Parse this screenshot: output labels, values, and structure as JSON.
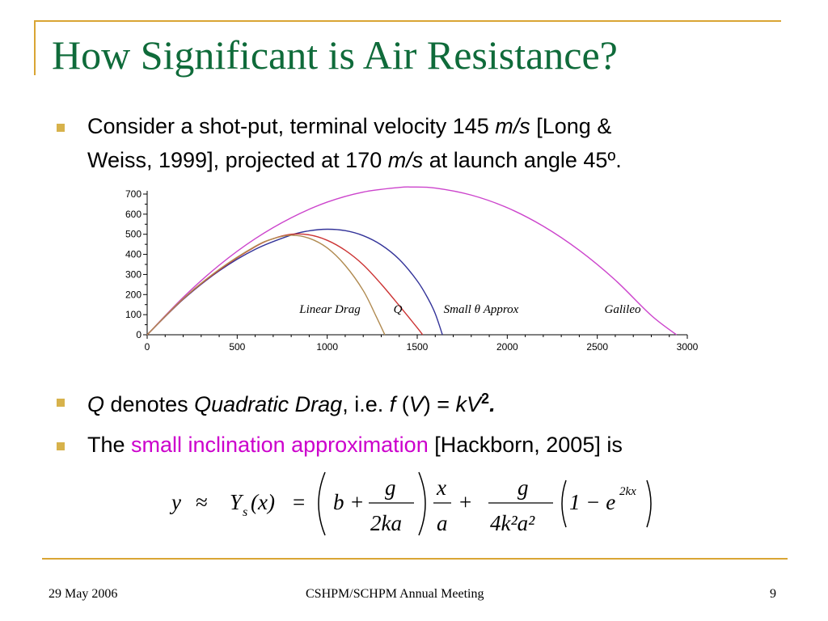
{
  "slide": {
    "title": "How Significant is Air Resistance?",
    "footer_date": "29 May 2006",
    "footer_center": "CSHPM/SCHPM Annual Meeting",
    "page_number": "9"
  },
  "bullets": {
    "b1": {
      "line1_a": "Consider a shot-put, terminal velocity 145 ",
      "line1_unit": "m/s",
      "line1_b": " [Long &",
      "line2_a": "Weiss, 1999], projected at 170 ",
      "line2_unit": "m/s",
      "line2_b": " at launch angle 45º."
    },
    "b2": {
      "q": "Q",
      "denotes": " denotes ",
      "quad": "Quadratic Drag",
      "ie": ", i.e. ",
      "f": "f",
      "paren_open": " (",
      "V": "V",
      "paren_close": ") = ",
      "kV": "kV",
      "sup": "2",
      "period": "."
    },
    "b3": {
      "the": "The ",
      "highlight": "small inclination approximation",
      "rest": " [Hackborn, 2005] is"
    }
  },
  "formula": {
    "y": "y",
    "approx": "≈",
    "Y": "Y",
    "sub_s": "s",
    "x_paren": "(x)",
    "equals": "=",
    "b_plus": "b +",
    "num_g1": "g",
    "den_2ka": "2ka",
    "num_x": "x",
    "den_a": "a",
    "plus": "+",
    "num_g2": "g",
    "den_4k2a2": "4k²a²",
    "one_minus_e": "1 − e",
    "exp_2kx": "2kx"
  },
  "colors": {
    "title": "#0f6b3a",
    "accent_rule": "#d9a534",
    "bullet": "#d7b24b",
    "highlight": "#cc00cc"
  },
  "chart_data": {
    "type": "line",
    "xlim": [
      0,
      3000
    ],
    "ylim": [
      0,
      700
    ],
    "x_ticks": [
      "0",
      "500",
      "1000",
      "1500",
      "2000",
      "2500",
      "3000"
    ],
    "y_ticks": [
      "0",
      "100",
      "200",
      "300",
      "400",
      "500",
      "600",
      "700"
    ],
    "annotations": [
      "Linear Drag",
      "Q",
      "Small θ Approx",
      "Galileo"
    ],
    "grid": false,
    "series": [
      {
        "name": "Galileo",
        "color": "#cc44cc",
        "x": [
          0,
          200,
          400,
          600,
          800,
          1000,
          1200,
          1400,
          1470,
          1600,
          1800,
          2000,
          2200,
          2400,
          2600,
          2800,
          2940
        ],
        "y": [
          0,
          186,
          346,
          478,
          582,
          660,
          710,
          733,
          735,
          730,
          695,
          632,
          540,
          420,
          272,
          96,
          0
        ]
      },
      {
        "name": "Small θ Approx",
        "color": "#333399",
        "x": [
          0,
          200,
          400,
          600,
          800,
          900,
          1000,
          1100,
          1200,
          1300,
          1400,
          1500,
          1560,
          1600,
          1640
        ],
        "y": [
          0,
          176,
          318,
          425,
          496,
          517,
          525,
          518,
          493,
          447,
          375,
          268,
          180,
          105,
          0
        ]
      },
      {
        "name": "Q",
        "color": "#cc3333",
        "x": [
          0,
          200,
          400,
          600,
          700,
          800,
          900,
          1000,
          1100,
          1200,
          1300,
          1400,
          1500,
          1530
        ],
        "y": [
          0,
          178,
          322,
          438,
          478,
          500,
          497,
          470,
          420,
          348,
          252,
          145,
          35,
          0
        ]
      },
      {
        "name": "Linear Drag",
        "color": "#b08a50",
        "x": [
          0,
          200,
          400,
          600,
          700,
          800,
          900,
          1000,
          1100,
          1200,
          1270,
          1320
        ],
        "y": [
          0,
          180,
          325,
          440,
          478,
          495,
          480,
          432,
          345,
          220,
          95,
          0
        ]
      }
    ]
  }
}
